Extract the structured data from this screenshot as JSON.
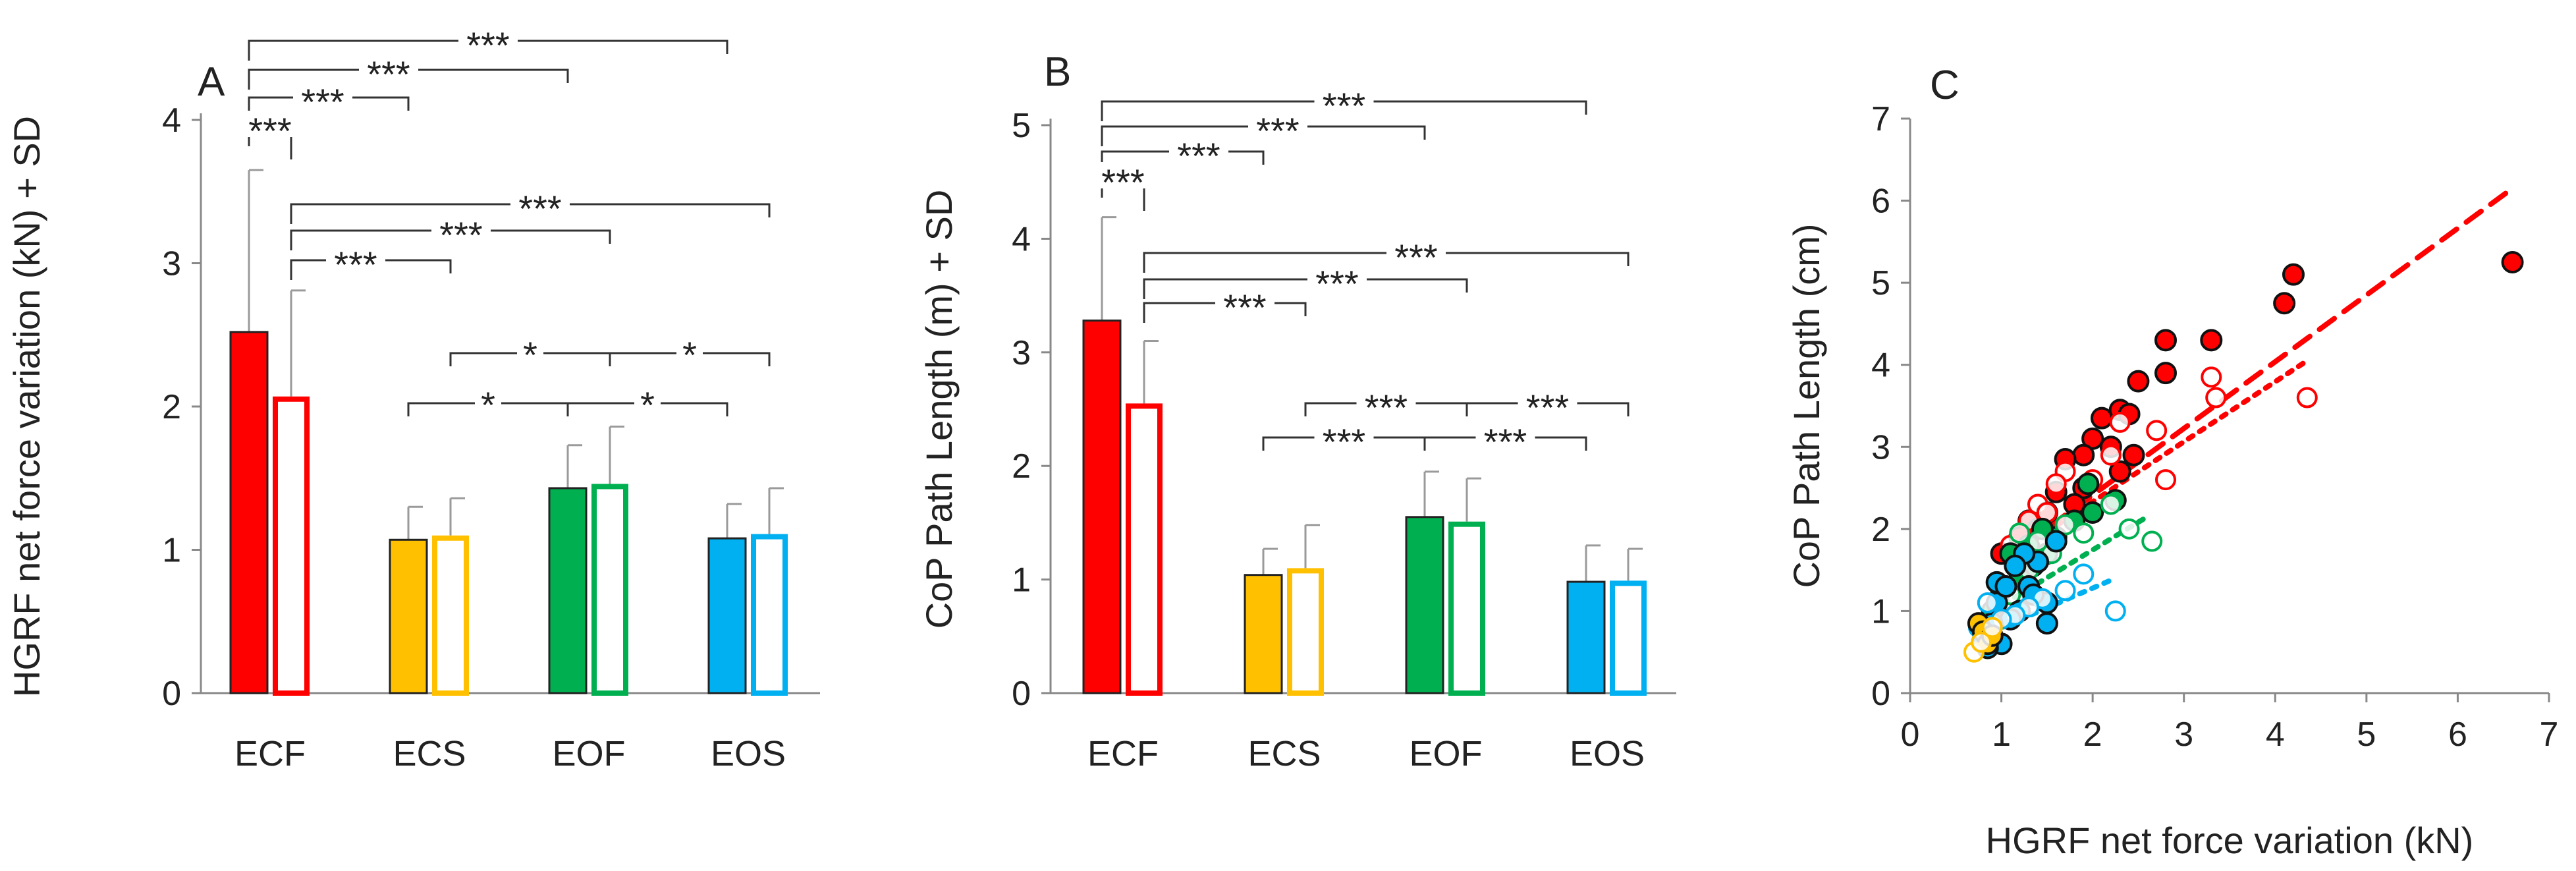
{
  "chart_data": [
    {
      "panel": "A",
      "type": "bar",
      "ylabel": "HGRF net force variation (kN) + SD",
      "ylim": [
        0,
        4
      ],
      "yticks": [
        0,
        1,
        2,
        3,
        4
      ],
      "categories": [
        "ECF",
        "ECS",
        "EOF",
        "EOS"
      ],
      "series": [
        {
          "name": "filled",
          "values": [
            2.52,
            1.07,
            1.43,
            1.08
          ],
          "sd": [
            1.13,
            0.23,
            0.3,
            0.24
          ]
        },
        {
          "name": "open",
          "values": [
            2.07,
            1.1,
            1.46,
            1.11
          ],
          "sd": [
            0.74,
            0.26,
            0.4,
            0.32
          ]
        }
      ],
      "colors": [
        "#ff0000",
        "#ffc000",
        "#00b050",
        "#00b0f0"
      ],
      "significance": [
        {
          "from": [
            0,
            0
          ],
          "to": [
            3,
            0
          ],
          "label": "***"
        },
        {
          "from": [
            0,
            0
          ],
          "to": [
            2,
            0
          ],
          "label": "***"
        },
        {
          "from": [
            0,
            0
          ],
          "to": [
            1,
            0
          ],
          "label": "***"
        },
        {
          "from": [
            0,
            0
          ],
          "to": [
            0,
            1
          ],
          "label": "***"
        },
        {
          "from": [
            0,
            1
          ],
          "to": [
            3,
            1
          ],
          "label": "***"
        },
        {
          "from": [
            0,
            1
          ],
          "to": [
            2,
            1
          ],
          "label": "***"
        },
        {
          "from": [
            0,
            1
          ],
          "to": [
            1,
            1
          ],
          "label": "***"
        },
        {
          "from": [
            1,
            1
          ],
          "to": [
            2,
            1
          ],
          "label": "*"
        },
        {
          "from": [
            2,
            1
          ],
          "to": [
            3,
            1
          ],
          "label": "*"
        },
        {
          "from": [
            1,
            0
          ],
          "to": [
            2,
            0
          ],
          "label": "*"
        },
        {
          "from": [
            2,
            0
          ],
          "to": [
            3,
            0
          ],
          "label": "*"
        }
      ]
    },
    {
      "panel": "B",
      "type": "bar",
      "ylabel": "CoP Path Length (m) + SD",
      "ylim": [
        0,
        5
      ],
      "yticks": [
        0,
        1,
        2,
        3,
        4,
        5
      ],
      "categories": [
        "ECF",
        "ECS",
        "EOF",
        "EOS"
      ],
      "series": [
        {
          "name": "filled",
          "values": [
            3.28,
            1.04,
            1.55,
            0.98
          ],
          "sd": [
            0.91,
            0.23,
            0.4,
            0.32
          ]
        },
        {
          "name": "open",
          "values": [
            2.55,
            1.1,
            1.51,
            0.99
          ],
          "sd": [
            0.55,
            0.38,
            0.38,
            0.28
          ]
        }
      ],
      "colors": [
        "#ff0000",
        "#ffc000",
        "#00b050",
        "#00b0f0"
      ],
      "significance": [
        {
          "from": [
            0,
            0
          ],
          "to": [
            3,
            0
          ],
          "label": "***"
        },
        {
          "from": [
            0,
            0
          ],
          "to": [
            2,
            0
          ],
          "label": "***"
        },
        {
          "from": [
            0,
            0
          ],
          "to": [
            1,
            0
          ],
          "label": "***"
        },
        {
          "from": [
            0,
            0
          ],
          "to": [
            0,
            1
          ],
          "label": "***"
        },
        {
          "from": [
            0,
            1
          ],
          "to": [
            3,
            1
          ],
          "label": "***"
        },
        {
          "from": [
            0,
            1
          ],
          "to": [
            2,
            1
          ],
          "label": "***"
        },
        {
          "from": [
            0,
            1
          ],
          "to": [
            1,
            1
          ],
          "label": "***"
        },
        {
          "from": [
            1,
            1
          ],
          "to": [
            2,
            1
          ],
          "label": "***"
        },
        {
          "from": [
            2,
            1
          ],
          "to": [
            3,
            1
          ],
          "label": "***"
        },
        {
          "from": [
            1,
            0
          ],
          "to": [
            2,
            0
          ],
          "label": "***"
        },
        {
          "from": [
            2,
            0
          ],
          "to": [
            3,
            0
          ],
          "label": "***"
        }
      ]
    },
    {
      "panel": "C",
      "type": "scatter",
      "xlabel": "HGRF net force variation (kN)",
      "ylabel": "CoP Path Length (cm)",
      "xlim": [
        0,
        7
      ],
      "ylim": [
        0,
        7
      ],
      "xticks": [
        0,
        1,
        2,
        3,
        4,
        5,
        6,
        7
      ],
      "yticks": [
        0,
        1,
        2,
        3,
        4,
        5,
        6,
        7
      ],
      "series": [
        {
          "name": "ECF filled",
          "color": "#ff0000",
          "filled": true,
          "points": [
            [
              6.6,
              5.25
            ],
            [
              4.2,
              5.1
            ],
            [
              4.1,
              4.75
            ],
            [
              3.3,
              4.3
            ],
            [
              2.8,
              4.3
            ],
            [
              2.5,
              3.8
            ],
            [
              2.8,
              3.9
            ],
            [
              2.3,
              3.45
            ],
            [
              2.4,
              3.4
            ],
            [
              2.1,
              3.35
            ],
            [
              2.0,
              3.1
            ],
            [
              2.2,
              3.0
            ],
            [
              2.45,
              2.9
            ],
            [
              1.9,
              2.9
            ],
            [
              1.7,
              2.85
            ],
            [
              2.3,
              2.7
            ],
            [
              1.9,
              2.5
            ],
            [
              1.6,
              2.45
            ],
            [
              1.5,
              2.2
            ],
            [
              1.3,
              2.1
            ],
            [
              1.8,
              2.3
            ],
            [
              1.4,
              2.0
            ],
            [
              1.2,
              1.9
            ],
            [
              1.0,
              1.7
            ]
          ],
          "trend": [
            [
              1.0,
              1.6
            ],
            [
              6.6,
              6.15
            ]
          ],
          "trend_style": "dashed"
        },
        {
          "name": "ECF open",
          "color": "#ff0000",
          "filled": false,
          "points": [
            [
              4.35,
              3.6
            ],
            [
              3.35,
              3.6
            ],
            [
              3.3,
              3.85
            ],
            [
              2.7,
              3.2
            ],
            [
              2.8,
              2.6
            ],
            [
              2.3,
              3.3
            ],
            [
              2.2,
              2.9
            ],
            [
              2.0,
              2.6
            ],
            [
              1.7,
              2.7
            ],
            [
              1.6,
              2.55
            ],
            [
              1.4,
              2.3
            ],
            [
              1.3,
              2.1
            ],
            [
              1.1,
              1.8
            ],
            [
              1.5,
              2.2
            ]
          ],
          "trend": [
            [
              1.0,
              1.6
            ],
            [
              4.35,
              4.05
            ]
          ],
          "trend_style": "dotted"
        },
        {
          "name": "EOF filled",
          "color": "#00b050",
          "filled": true,
          "points": [
            [
              2.25,
              2.35
            ],
            [
              1.95,
              2.55
            ],
            [
              2.0,
              2.2
            ],
            [
              1.8,
              2.1
            ],
            [
              1.6,
              1.9
            ],
            [
              1.5,
              1.7
            ],
            [
              1.35,
              1.55
            ],
            [
              1.2,
              1.4
            ],
            [
              1.1,
              1.7
            ],
            [
              1.3,
              1.8
            ],
            [
              1.45,
              2.0
            ],
            [
              1.0,
              1.25
            ],
            [
              0.9,
              1.0
            ]
          ]
        },
        {
          "name": "EOF open",
          "color": "#00b050",
          "filled": false,
          "points": [
            [
              2.65,
              1.85
            ],
            [
              2.2,
              2.3
            ],
            [
              2.4,
              2.0
            ],
            [
              1.9,
              1.95
            ],
            [
              1.7,
              2.05
            ],
            [
              1.55,
              1.7
            ],
            [
              1.3,
              1.5
            ],
            [
              1.1,
              1.2
            ],
            [
              1.4,
              1.85
            ],
            [
              1.2,
              1.95
            ]
          ],
          "trend": [
            [
              0.9,
              1.0
            ],
            [
              2.6,
              2.15
            ]
          ],
          "trend_style": "dotted"
        },
        {
          "name": "EOS filled",
          "color": "#00b0f0",
          "filled": true,
          "points": [
            [
              1.6,
              1.85
            ],
            [
              1.4,
              1.6
            ],
            [
              1.3,
              1.3
            ],
            [
              1.5,
              1.1
            ],
            [
              1.2,
              1.0
            ],
            [
              1.1,
              0.9
            ],
            [
              0.95,
              1.35
            ],
            [
              0.9,
              0.85
            ],
            [
              0.85,
              0.7
            ],
            [
              1.0,
              0.6
            ],
            [
              0.85,
              0.55
            ],
            [
              1.5,
              0.85
            ],
            [
              1.25,
              1.7
            ],
            [
              1.35,
              1.2
            ],
            [
              0.95,
              1.1
            ],
            [
              1.05,
              1.3
            ],
            [
              0.8,
              0.65
            ],
            [
              1.15,
              1.55
            ]
          ]
        },
        {
          "name": "EOS open",
          "color": "#00b0f0",
          "filled": false,
          "points": [
            [
              2.25,
              1.0
            ],
            [
              1.9,
              1.45
            ],
            [
              1.7,
              1.25
            ],
            [
              1.45,
              1.15
            ],
            [
              1.3,
              1.05
            ],
            [
              1.15,
              0.95
            ],
            [
              1.0,
              0.9
            ],
            [
              0.85,
              1.1
            ],
            [
              0.75,
              0.8
            ]
          ],
          "trend": [
            [
              0.8,
              0.7
            ],
            [
              2.25,
              1.4
            ]
          ],
          "trend_style": "dotted"
        },
        {
          "name": "ECS filled",
          "color": "#ffc000",
          "filled": true,
          "points": [
            [
              0.75,
              0.85
            ],
            [
              0.8,
              0.75
            ],
            [
              0.85,
              0.6
            ],
            [
              0.9,
              0.7
            ]
          ]
        },
        {
          "name": "ECS open",
          "color": "#ffc000",
          "filled": false,
          "points": [
            [
              0.7,
              0.5
            ],
            [
              0.78,
              0.62
            ],
            [
              0.9,
              0.8
            ]
          ]
        }
      ]
    }
  ],
  "panel_letters": [
    "A",
    "B",
    "C"
  ]
}
